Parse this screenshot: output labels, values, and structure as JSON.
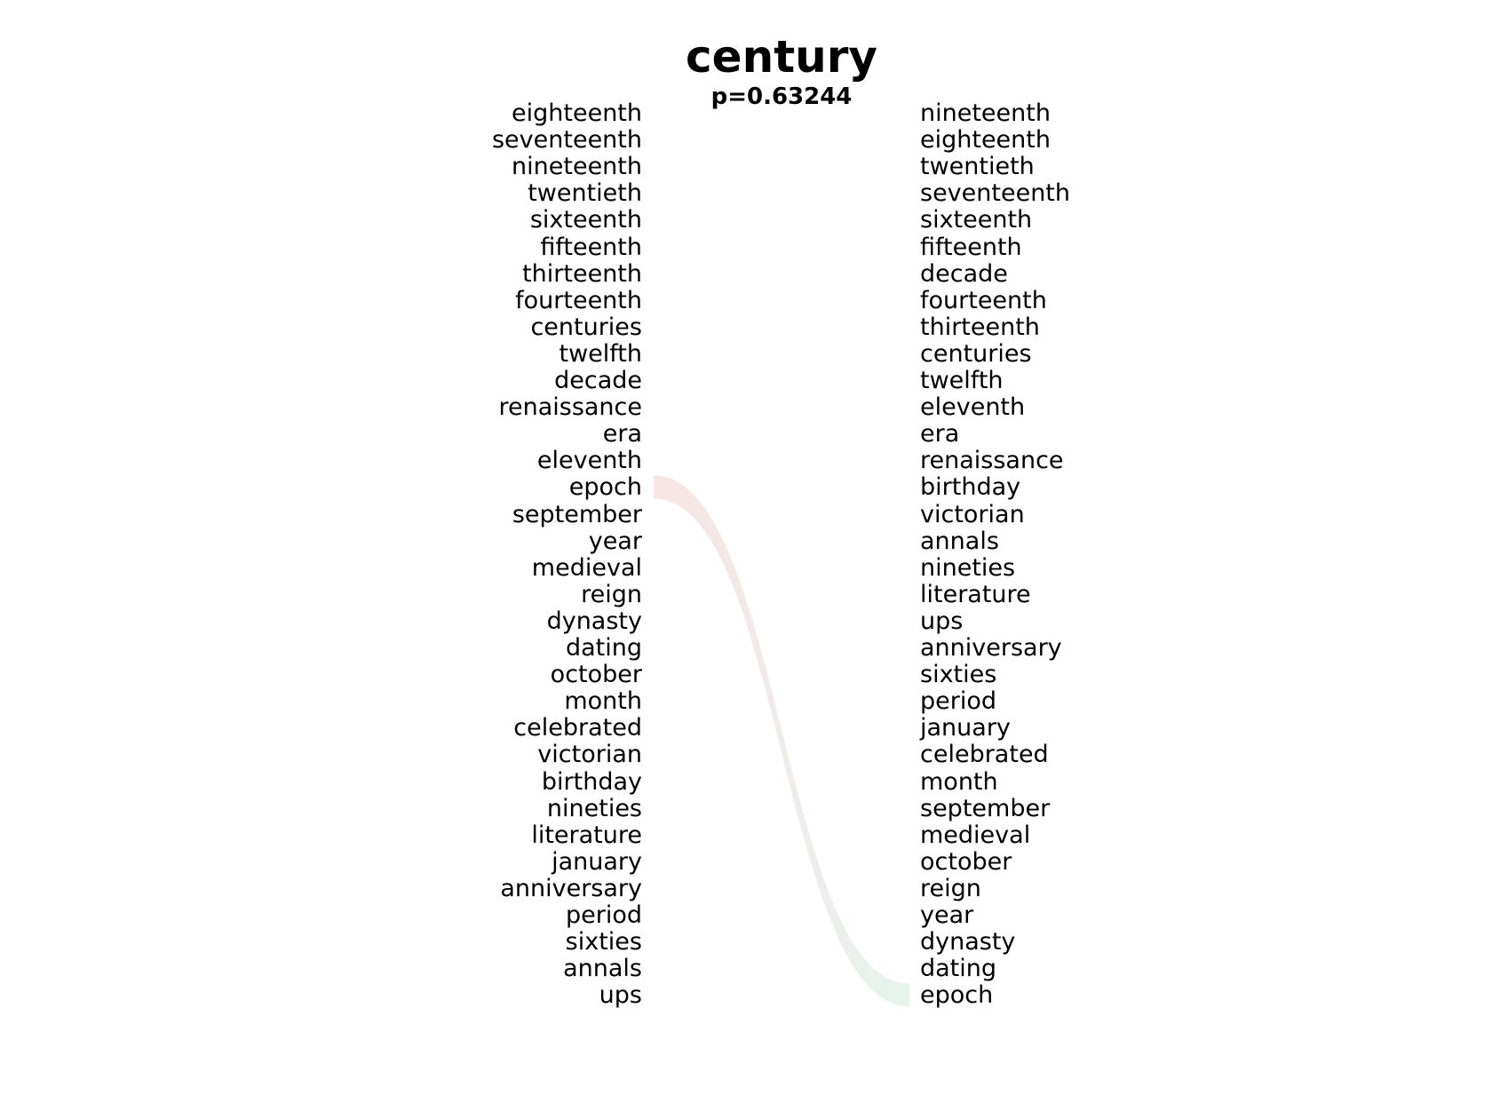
{
  "title": "century",
  "subtitle": "p=0.63244",
  "left_list": [
    "eighteenth",
    "seventeenth",
    "nineteenth",
    "twentieth",
    "sixteenth",
    "fifteenth",
    "thirteenth",
    "fourteenth",
    "centuries",
    "twelfth",
    "decade",
    "renaissance",
    "era",
    "eleventh",
    "epoch",
    "september",
    "year",
    "medieval",
    "reign",
    "dynasty",
    "dating",
    "october",
    "month",
    "celebrated",
    "victorian",
    "birthday",
    "nineties",
    "literature",
    "january",
    "anniversary",
    "period",
    "sixties",
    "annals",
    "ups"
  ],
  "right_list": [
    "nineteenth",
    "eighteenth",
    "twentieth",
    "seventeenth",
    "sixteenth",
    "fifteenth",
    "decade",
    "fourteenth",
    "thirteenth",
    "centuries",
    "twelfth",
    "eleventh",
    "era",
    "renaissance",
    "birthday",
    "victorian",
    "annals",
    "nineties",
    "literature",
    "ups",
    "anniversary",
    "sixties",
    "period",
    "january",
    "celebrated",
    "month",
    "september",
    "medieval",
    "october",
    "reign",
    "year",
    "dynasty",
    "dating",
    "epoch"
  ],
  "links": [
    {
      "word": "epoch",
      "left_rank": 15,
      "right_rank": 34,
      "color_start": "#f9e4e4",
      "color_end": "#e6f4ee"
    }
  ]
}
